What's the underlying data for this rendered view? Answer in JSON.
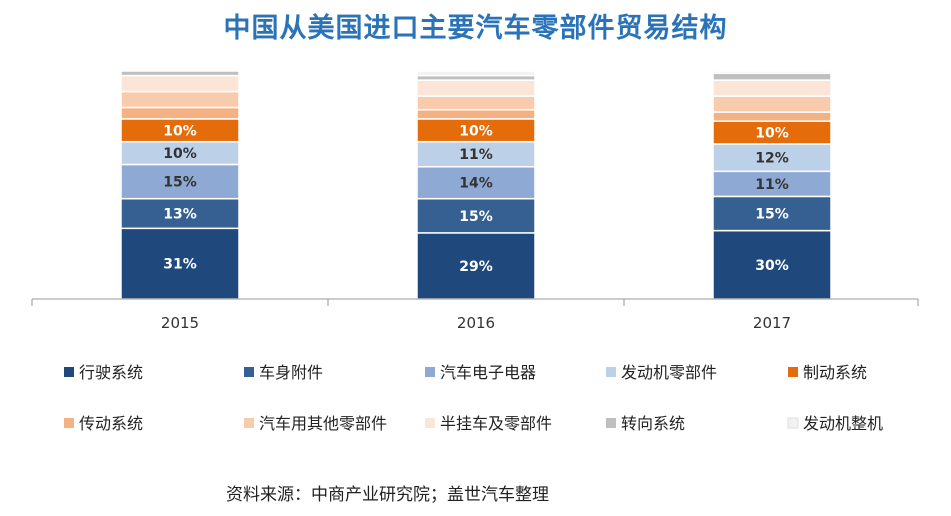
{
  "source_note": "资料来源：中商产业研究院；盖世汽车整理",
  "chart_data": {
    "type": "bar",
    "stacked": true,
    "title": "中国从美国进口主要汽车零部件贸易结构",
    "categories": [
      "2015",
      "2016",
      "2017"
    ],
    "legend_position": "bottom",
    "series": [
      {
        "name": "行驶系统",
        "color": "#1f497d",
        "values": [
          31,
          29,
          30
        ],
        "labels": [
          "31%",
          "29%",
          "30%"
        ]
      },
      {
        "name": "车身附件",
        "color": "#366092",
        "values": [
          13,
          15,
          15
        ],
        "labels": [
          "13%",
          "15%",
          "15%"
        ]
      },
      {
        "name": "汽车电子电器",
        "color": "#8eaad4",
        "values": [
          15,
          14,
          11
        ],
        "labels": [
          "15%",
          "14%",
          "11%"
        ]
      },
      {
        "name": "发动机零部件",
        "color": "#bcd0e8",
        "values": [
          10,
          11,
          12
        ],
        "labels": [
          "10%",
          "11%",
          "12%"
        ]
      },
      {
        "name": "制动系统",
        "color": "#e46c0a",
        "values": [
          10,
          10,
          10
        ],
        "labels": [
          "10%",
          "10%",
          "10%"
        ]
      },
      {
        "name": "传动系统",
        "color": "#f4b183",
        "values": [
          5,
          4,
          4
        ],
        "labels": [
          "",
          "",
          ""
        ]
      },
      {
        "name": "汽车用其他零部件",
        "color": "#f8cbad",
        "values": [
          7,
          6,
          7
        ],
        "labels": [
          "",
          "",
          ""
        ]
      },
      {
        "name": "半挂车及零部件",
        "color": "#fbe5d6",
        "values": [
          7,
          7,
          7
        ],
        "labels": [
          "",
          "",
          ""
        ]
      },
      {
        "name": "转向系统",
        "color": "#bfbfbf",
        "values": [
          2,
          2,
          3
        ],
        "labels": [
          "",
          "",
          ""
        ]
      },
      {
        "name": "发动机整机",
        "color": "#f2f2f2",
        "values": [
          0,
          2,
          1
        ],
        "labels": [
          "",
          "",
          ""
        ]
      }
    ]
  }
}
